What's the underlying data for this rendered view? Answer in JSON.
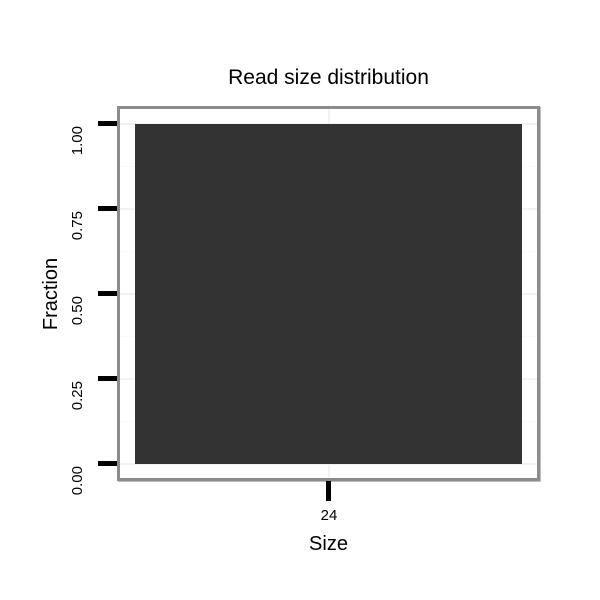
{
  "chart_data": {
    "type": "bar",
    "title": "Read size distribution",
    "xlabel": "Size",
    "ylabel": "Fraction",
    "categories": [
      "24"
    ],
    "values": [
      1.0
    ],
    "ylim": [
      0,
      1
    ],
    "ytick_labels": [
      "1.00",
      "0.75",
      "0.50",
      "0.25",
      "0.00"
    ],
    "legend_position": "none",
    "grid": "very-faint horizontal major/minor lines on white panel",
    "bar_color": "#333333",
    "panel_border_color": "#8c8c8c",
    "tick_color": "#000000",
    "background_color": "#ffffff"
  }
}
